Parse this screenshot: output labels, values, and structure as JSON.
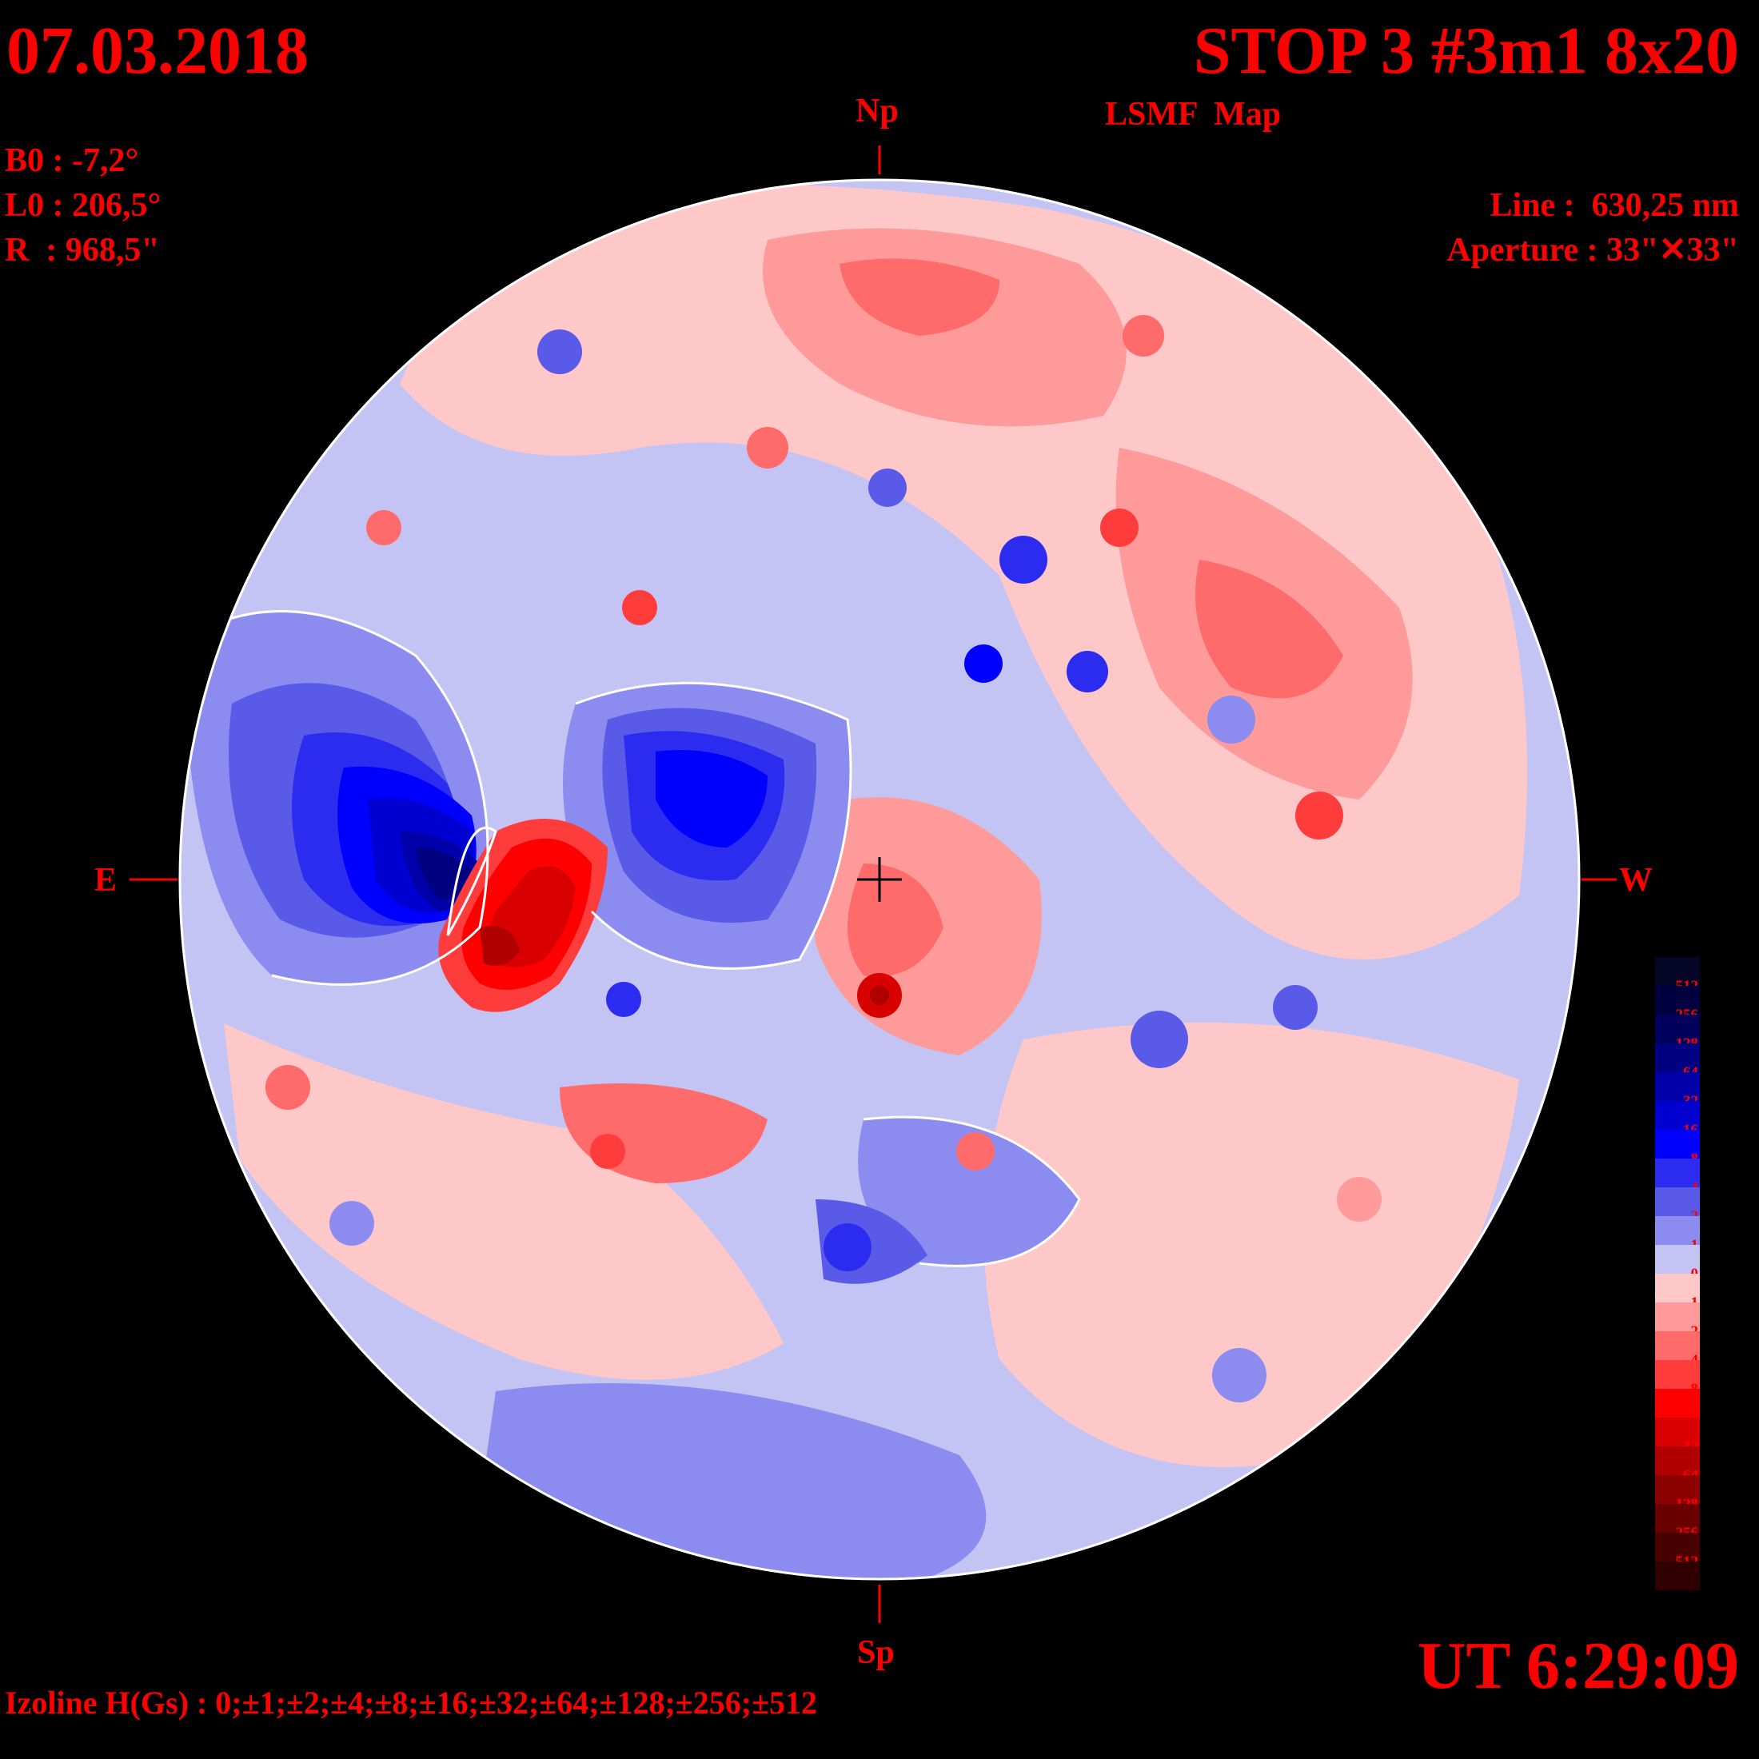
{
  "header": {
    "date": "07.03.2018",
    "title": "STOP 3 #3m1 8x20",
    "map_label": "LSMF  Map"
  },
  "params": {
    "b0": "B0 : -7,2°",
    "l0": "L0 : 206,5°",
    "r": "R  : 968,5\"",
    "line": "Line :  630,25 nm",
    "aperture": "Aperture : 33\"✕33\""
  },
  "compass": {
    "north": "Np",
    "south": "Sp",
    "east": "E",
    "west": "W"
  },
  "time": "UT 6:29:09",
  "izoline": "Izoline H(Gs) : 0;±1;±2;±4;±8;±16;±32;±64;±128;±256;±512",
  "colorbar": {
    "levels": [
      {
        "label": "-512",
        "color": "#050528"
      },
      {
        "label": "-256",
        "color": "#000040"
      },
      {
        "label": "-128",
        "color": "#00005c"
      },
      {
        "label": "-64",
        "color": "#000080"
      },
      {
        "label": "-32",
        "color": "#0000a8"
      },
      {
        "label": "-16",
        "color": "#0000d0"
      },
      {
        "label": "-8",
        "color": "#0000ff"
      },
      {
        "label": "-4",
        "color": "#2c2cf0"
      },
      {
        "label": "-2",
        "color": "#5a5ae8"
      },
      {
        "label": "-1",
        "color": "#8c8cf0"
      },
      {
        "label": "0",
        "color": "#c4c4f4"
      },
      {
        "label": "1",
        "color": "#ffc8c8"
      },
      {
        "label": "2",
        "color": "#ff9a9a"
      },
      {
        "label": "4",
        "color": "#ff6a6a"
      },
      {
        "label": "8",
        "color": "#ff3c3c"
      },
      {
        "label": "16",
        "color": "#ff0000"
      },
      {
        "label": "32",
        "color": "#d80000"
      },
      {
        "label": "64",
        "color": "#b00000"
      },
      {
        "label": "128",
        "color": "#8c0000"
      },
      {
        "label": "256",
        "color": "#680000"
      },
      {
        "label": "512",
        "color": "#480000"
      },
      {
        "label": "",
        "color": "#300000"
      }
    ]
  },
  "features": [
    {
      "name": "negative-polarity-region",
      "color": "#000080",
      "strength": -128
    },
    {
      "name": "positive-polarity-region",
      "color": "#b00000",
      "strength": 128
    }
  ]
}
